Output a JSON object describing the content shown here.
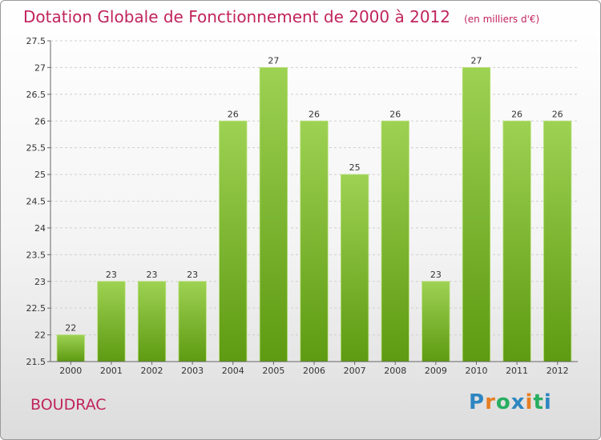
{
  "header": {
    "title": "Dotation Globale de Fonctionnement de 2000 à 2012",
    "unit": "(en milliers d'€)"
  },
  "footer": {
    "place": "BOUDRAC",
    "logo": {
      "text": "Proxiti",
      "letters": [
        {
          "char": "P",
          "color": "#2e86c1"
        },
        {
          "char": "r",
          "color": "#e67e22"
        },
        {
          "char": "o",
          "color": "#27ae60"
        },
        {
          "char": "x",
          "color": "#2e86c1"
        },
        {
          "char": "i",
          "color": "#e67e22"
        },
        {
          "char": "t",
          "color": "#27ae60"
        },
        {
          "char": "i",
          "color": "#2e86c1"
        }
      ]
    }
  },
  "colors": {
    "accent": "#c0245c",
    "bar_light": "#9dd252",
    "bar_dark": "#5e9a12",
    "axis": "#666666",
    "grid": "#cfcfcf"
  },
  "chart_data": {
    "type": "bar",
    "title": "Dotation Globale de Fonctionnement de 2000 à 2012",
    "subtitle": "(en milliers d'€)",
    "xlabel": "",
    "ylabel": "",
    "categories": [
      "2000",
      "2001",
      "2002",
      "2003",
      "2004",
      "2005",
      "2006",
      "2007",
      "2008",
      "2009",
      "2010",
      "2011",
      "2012"
    ],
    "values": [
      22,
      23,
      23,
      23,
      26,
      27,
      26,
      25,
      26,
      23,
      27,
      26,
      26
    ],
    "ylim": [
      21.5,
      27.5
    ],
    "yticks": [
      "21.5",
      "22",
      "22.5",
      "23",
      "23.5",
      "24",
      "24.5",
      "25",
      "25.5",
      "26",
      "26.5",
      "27",
      "27.5"
    ],
    "grid": true,
    "legend": "none"
  }
}
